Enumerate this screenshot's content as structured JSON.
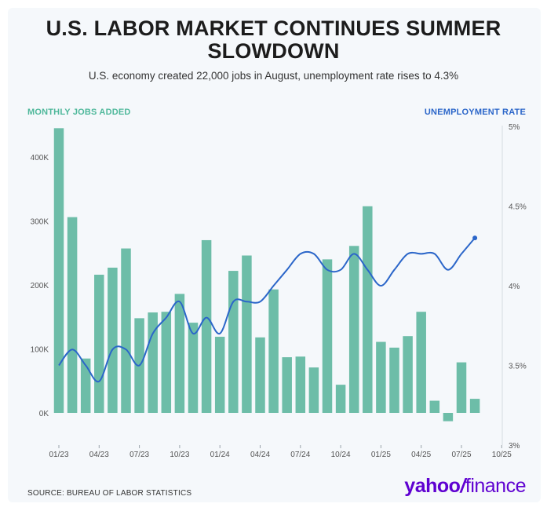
{
  "header": {
    "title": "U.S. LABOR MARKET CONTINUES SUMMER SLOWDOWN",
    "subtitle": "U.S. economy created 22,000 jobs in August, unemployment rate rises to 4.3%"
  },
  "footer": {
    "source": "SOURCE: BUREAU OF LABOR STATISTICS",
    "logo_yahoo": "yahoo",
    "logo_slash": "/",
    "logo_finance": "finance"
  },
  "colors": {
    "bars": "#6dbda8",
    "line": "#2b66c9",
    "left_label": "#4fb89b",
    "right_label": "#2b66c9"
  },
  "chart_data": {
    "type": "bar+line",
    "left_axis_label": "MONTHLY JOBS ADDED",
    "right_axis_label": "UNEMPLOYMENT RATE",
    "x_tick_labels": [
      "01/23",
      "04/23",
      "07/23",
      "10/23",
      "01/24",
      "04/24",
      "07/24",
      "10/24",
      "01/25",
      "04/25",
      "07/25",
      "10/25"
    ],
    "y_left_ticks": [
      {
        "value": 0,
        "label": "0K"
      },
      {
        "value": 100000,
        "label": "100K"
      },
      {
        "value": 200000,
        "label": "200K"
      },
      {
        "value": 300000,
        "label": "300K"
      },
      {
        "value": 400000,
        "label": "400K"
      }
    ],
    "y_right_ticks": [
      {
        "value": 3,
        "label": "3%"
      },
      {
        "value": 3.5,
        "label": "3.5%"
      },
      {
        "value": 4,
        "label": "4%"
      },
      {
        "value": 4.5,
        "label": "4.5%"
      },
      {
        "value": 5,
        "label": "5%"
      }
    ],
    "y_left_range": [
      -50000,
      450000
    ],
    "y_right_range": [
      3,
      5
    ],
    "months": [
      "2023-01",
      "2023-02",
      "2023-03",
      "2023-04",
      "2023-05",
      "2023-06",
      "2023-07",
      "2023-08",
      "2023-09",
      "2023-10",
      "2023-11",
      "2023-12",
      "2024-01",
      "2024-02",
      "2024-03",
      "2024-04",
      "2024-05",
      "2024-06",
      "2024-07",
      "2024-08",
      "2024-09",
      "2024-10",
      "2024-11",
      "2024-12",
      "2025-01",
      "2025-02",
      "2025-03",
      "2025-04",
      "2025-05",
      "2025-06",
      "2025-07",
      "2025-08"
    ],
    "series": [
      {
        "name": "MONTHLY JOBS ADDED",
        "type": "bar",
        "axis": "left",
        "values": [
          445000,
          306000,
          85000,
          216000,
          227000,
          257000,
          148000,
          157000,
          158000,
          186000,
          141000,
          270000,
          119000,
          222000,
          246000,
          118000,
          193000,
          87000,
          88000,
          71000,
          240000,
          44000,
          261000,
          323000,
          111000,
          102000,
          120000,
          158000,
          19000,
          -13000,
          79000,
          22000
        ]
      },
      {
        "name": "UNEMPLOYMENT RATE",
        "type": "line",
        "axis": "right",
        "values": [
          3.5,
          3.6,
          3.5,
          3.4,
          3.6,
          3.6,
          3.5,
          3.7,
          3.8,
          3.9,
          3.7,
          3.8,
          3.7,
          3.9,
          3.9,
          3.9,
          4.0,
          4.1,
          4.2,
          4.2,
          4.1,
          4.1,
          4.2,
          4.1,
          4.0,
          4.1,
          4.2,
          4.2,
          4.2,
          4.1,
          4.2,
          4.3
        ]
      }
    ],
    "grid": false,
    "legend": "none"
  }
}
